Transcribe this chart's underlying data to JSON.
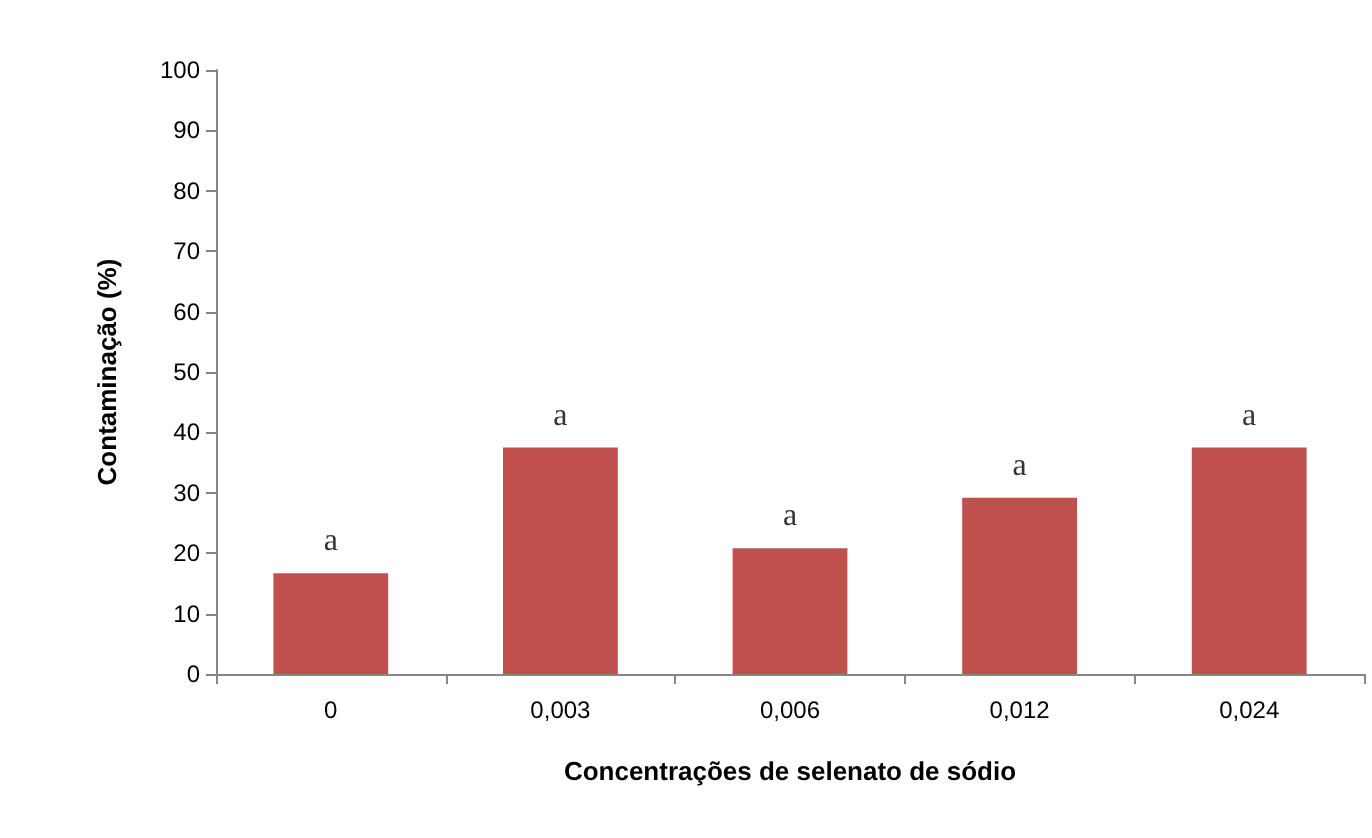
{
  "chart_data": {
    "type": "bar",
    "xlabel": "Concentrações de selenato de sódio",
    "ylabel": "Contaminação (%)",
    "categories": [
      "0",
      "0,003",
      "0,006",
      "0,012",
      "0,024"
    ],
    "values": [
      16.7,
      37.5,
      20.8,
      29.2,
      37.5
    ],
    "color": "#c0504d",
    "ylim": [
      0,
      100
    ],
    "yticks": [
      0,
      10,
      20,
      30,
      40,
      50,
      60,
      70,
      80,
      90,
      100
    ],
    "grid": false,
    "annotations": [
      {
        "text": "a",
        "x": "0",
        "y": 16.7
      },
      {
        "text": "a",
        "x": "0,003",
        "y": 37.5
      },
      {
        "text": "a",
        "x": "0,006",
        "y": 20.8
      },
      {
        "text": "a",
        "x": "0,012",
        "y": 29.2
      },
      {
        "text": "a",
        "x": "0,024",
        "y": 37.5
      }
    ]
  }
}
